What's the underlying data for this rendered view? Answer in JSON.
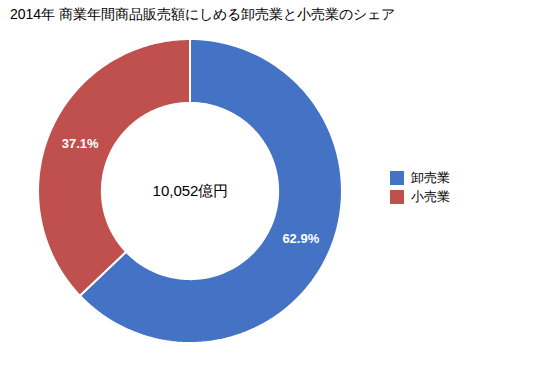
{
  "chart_data": {
    "type": "donut",
    "title": "2014年 商業年間商品販売額にしめる卸売業と小売業のシェア",
    "categories": [
      "卸売業",
      "小売業"
    ],
    "values": [
      62.9,
      37.1
    ],
    "colors": [
      "#4472C4",
      "#C0504D"
    ],
    "data_labels": true,
    "value_labels": [
      "62.9%",
      "37.1%"
    ],
    "annotations": [
      "10,052億円"
    ],
    "legend": "right"
  }
}
